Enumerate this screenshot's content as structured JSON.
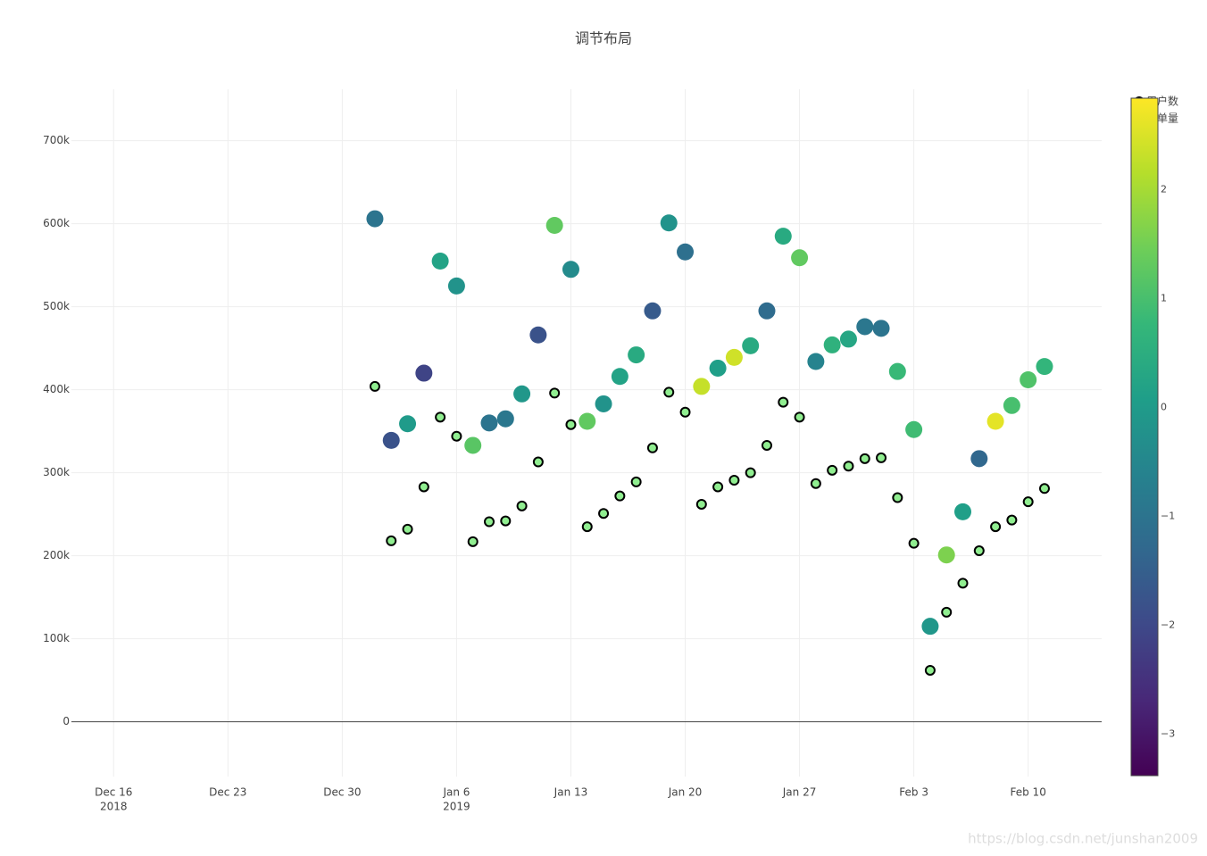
{
  "chart_data": {
    "type": "scatter",
    "title": "调节布局",
    "x": [
      "2019-01-01",
      "2019-01-02",
      "2019-01-03",
      "2019-01-04",
      "2019-01-05",
      "2019-01-06",
      "2019-01-07",
      "2019-01-08",
      "2019-01-09",
      "2019-01-10",
      "2019-01-11",
      "2019-01-12",
      "2019-01-13",
      "2019-01-14",
      "2019-01-15",
      "2019-01-16",
      "2019-01-17",
      "2019-01-18",
      "2019-01-19",
      "2019-01-20",
      "2019-01-21",
      "2019-01-22",
      "2019-01-23",
      "2019-01-24",
      "2019-01-25",
      "2019-01-26",
      "2019-01-27",
      "2019-01-28",
      "2019-01-29",
      "2019-01-30",
      "2019-01-31",
      "2019-02-01",
      "2019-02-02",
      "2019-02-03",
      "2019-02-04",
      "2019-02-05",
      "2019-02-06",
      "2019-02-07",
      "2019-02-08",
      "2019-02-09",
      "2019-02-10",
      "2019-02-11"
    ],
    "series": [
      {
        "name": "用户数",
        "color": "#90ee90",
        "outline": "#000000",
        "size": 10,
        "values": [
          404000,
          218000,
          232000,
          283000,
          367000,
          344000,
          217000,
          241000,
          242000,
          260000,
          313000,
          396000,
          358000,
          235000,
          251000,
          272000,
          289000,
          330000,
          397000,
          373000,
          262000,
          283000,
          291000,
          300000,
          333000,
          385000,
          367000,
          287000,
          303000,
          308000,
          317000,
          318000,
          270000,
          215000,
          62000,
          132000,
          167000,
          206000,
          235000,
          243000,
          265000,
          281000
        ]
      },
      {
        "name": "订单量",
        "size": 19,
        "values": [
          606000,
          339000,
          359000,
          420000,
          555000,
          525000,
          333000,
          360000,
          365000,
          395000,
          466000,
          598000,
          545000,
          362000,
          383000,
          416000,
          442000,
          495000,
          601000,
          566000,
          404000,
          426000,
          439000,
          453000,
          495000,
          585000,
          559000,
          434000,
          454000,
          461000,
          476000,
          474000,
          422000,
          352000,
          115000,
          201000,
          253000,
          317000,
          362000,
          381000,
          412000,
          428000
        ],
        "color_values": [
          -1,
          -1.8,
          0,
          -2.1,
          0.2,
          -0.2,
          1.2,
          -1,
          -0.9,
          -0.1,
          -1.8,
          1.3,
          -0.4,
          1.3,
          -0.2,
          0.2,
          0.4,
          -1.6,
          -0.2,
          -1.1,
          2.3,
          0.1,
          2.4,
          0.4,
          -1.2,
          0.4,
          1.3,
          -0.6,
          0.6,
          0.3,
          -0.9,
          -1,
          0.8,
          0.9,
          -0.1,
          1.6,
          0.1,
          -1.3,
          2.6,
          1,
          1.1,
          0.7
        ]
      }
    ],
    "xlim": [
      "2018-12-13 10:00",
      "2019-02-14 12:00"
    ],
    "xticks": [
      {
        "value": "2018-12-16",
        "label": [
          "Dec 16",
          "2018"
        ]
      },
      {
        "value": "2018-12-23",
        "label": [
          "Dec 23"
        ]
      },
      {
        "value": "2018-12-30",
        "label": [
          "Dec 30"
        ]
      },
      {
        "value": "2019-01-06",
        "label": [
          "Jan 6",
          "2019"
        ]
      },
      {
        "value": "2019-01-13",
        "label": [
          "Jan 13"
        ]
      },
      {
        "value": "2019-01-20",
        "label": [
          "Jan 20"
        ]
      },
      {
        "value": "2019-01-27",
        "label": [
          "Jan 27"
        ]
      },
      {
        "value": "2019-02-03",
        "label": [
          "Feb 3"
        ]
      },
      {
        "value": "2019-02-10",
        "label": [
          "Feb 10"
        ]
      }
    ],
    "ylim": [
      -66000,
      762000
    ],
    "yticks": [
      0,
      {
        "value": 100000,
        "label": "100k"
      },
      {
        "value": 200000,
        "label": "200k"
      },
      {
        "value": 300000,
        "label": "300k"
      },
      {
        "value": 400000,
        "label": "400k"
      },
      {
        "value": 500000,
        "label": "500k"
      },
      {
        "value": 600000,
        "label": "600k"
      },
      {
        "value": 700000,
        "label": "700k"
      }
    ],
    "grid": true,
    "legend": "top-right",
    "colorbar": {
      "clim": [
        -3.38,
        2.84
      ],
      "colorscale": [
        "#440154",
        "#482878",
        "#3e4989",
        "#31688e",
        "#26828e",
        "#1f9e89",
        "#35b779",
        "#6ece58",
        "#b5de2b",
        "#fde725"
      ],
      "ticks": [
        {
          "value": -3,
          "label": "−3"
        },
        {
          "value": -2,
          "label": "−2"
        },
        {
          "value": -1,
          "label": "−1"
        },
        0,
        1,
        2
      ]
    },
    "watermark": "https://blog.csdn.net/junshan2009"
  }
}
